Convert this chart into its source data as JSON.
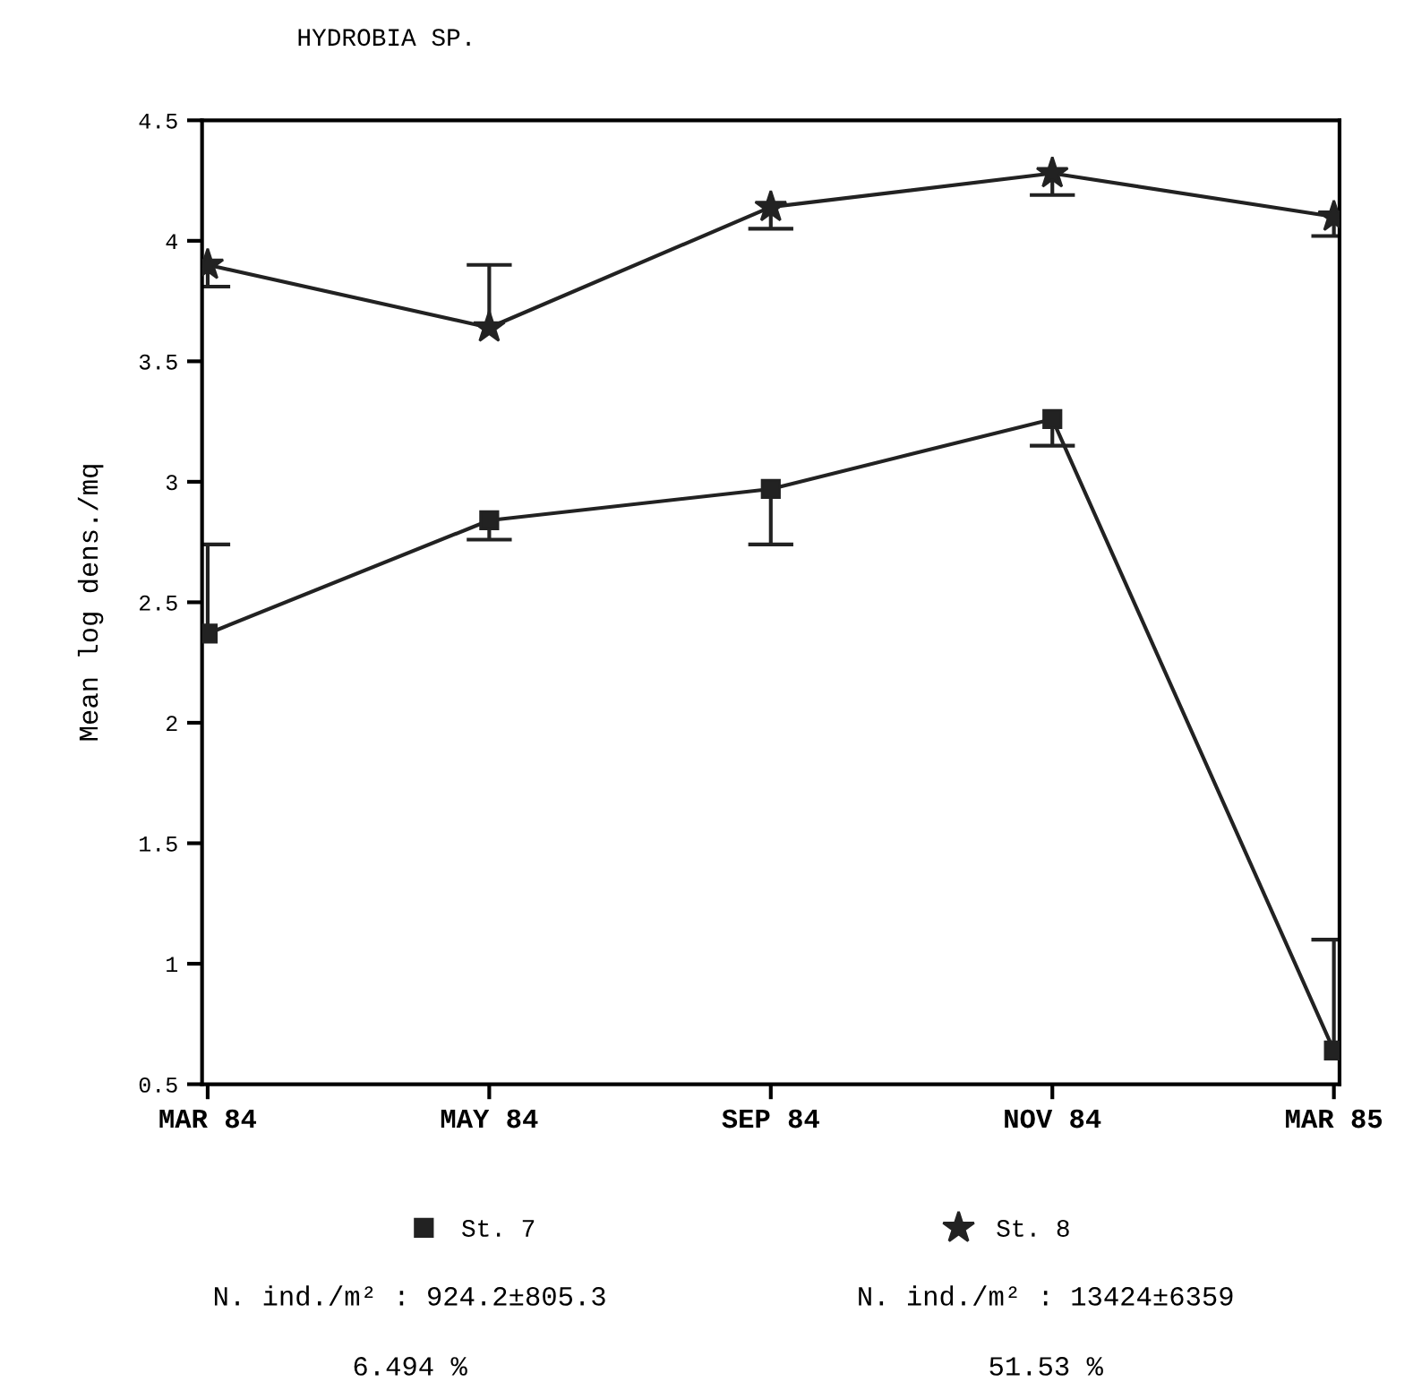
{
  "chart_data": {
    "type": "line",
    "title": "HYDROBIA SP.",
    "ylabel": "Mean log dens./mq",
    "categories": [
      "MAR 84",
      "MAY 84",
      "SEP 84",
      "NOV 84",
      "MAR 85"
    ],
    "series": [
      {
        "name": "St. 7",
        "color": "#222222",
        "marker": "square",
        "values": [
          2.37,
          2.84,
          2.97,
          3.26,
          0.64
        ],
        "errors": [
          [
            2.37,
            2.74
          ],
          [
            2.76,
            2.84
          ],
          [
            2.74,
            2.97
          ],
          [
            3.15,
            3.26
          ],
          [
            0.64,
            1.1
          ]
        ]
      },
      {
        "name": "St. 8",
        "color": "#222222",
        "marker": "star",
        "values": [
          3.9,
          3.64,
          4.14,
          4.28,
          4.1
        ],
        "errors": [
          [
            3.81,
            3.9
          ],
          [
            3.64,
            3.9
          ],
          [
            4.05,
            4.14
          ],
          [
            4.19,
            4.28
          ],
          [
            4.02,
            4.1
          ]
        ]
      }
    ],
    "ylim": [
      0.5,
      4.5
    ],
    "yticks": [
      0.5,
      1,
      1.5,
      2,
      2.5,
      3,
      3.5,
      4,
      4.5
    ],
    "grid": false,
    "legend": "bottom",
    "line_style": "solid",
    "annotations": [
      "N. ind./m² : 924.2±805.3",
      "N. ind./m² : 13424±6359",
      "6.494 %",
      "51.53 %"
    ]
  }
}
